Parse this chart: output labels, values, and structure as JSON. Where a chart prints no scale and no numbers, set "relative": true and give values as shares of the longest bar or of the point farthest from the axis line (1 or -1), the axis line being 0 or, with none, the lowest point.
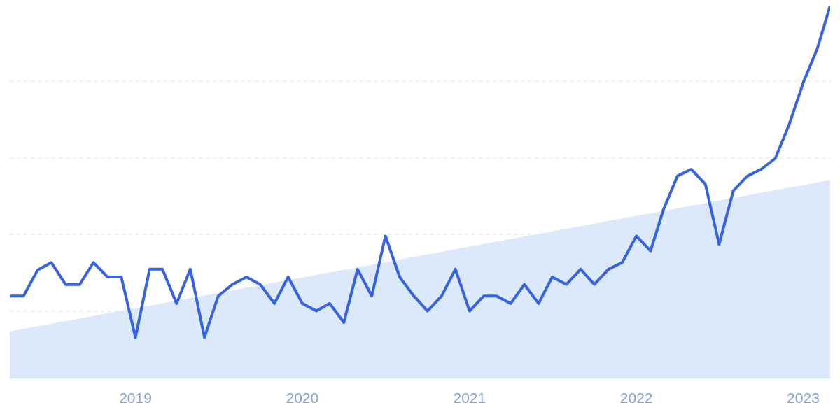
{
  "chart_data": {
    "type": "line",
    "relative": true,
    "grid": "y",
    "x": [
      "2018-04",
      "2018-05",
      "2018-06",
      "2018-07",
      "2018-08",
      "2018-09",
      "2018-10",
      "2018-11",
      "2018-12",
      "2019-01",
      "2019-02",
      "2019-03",
      "2019-04",
      "2019-05",
      "2019-06",
      "2019-07",
      "2019-08",
      "2019-09",
      "2019-10",
      "2019-11",
      "2019-12",
      "2020-01",
      "2020-02",
      "2020-03",
      "2020-04",
      "2020-05",
      "2020-06",
      "2020-07",
      "2020-08",
      "2020-09",
      "2020-10",
      "2020-11",
      "2020-12",
      "2021-01",
      "2021-02",
      "2021-03",
      "2021-04",
      "2021-05",
      "2021-06",
      "2021-07",
      "2021-08",
      "2021-09",
      "2021-10",
      "2021-11",
      "2021-12",
      "2022-01",
      "2022-02",
      "2022-03",
      "2022-04",
      "2022-05",
      "2022-06",
      "2022-07",
      "2022-08",
      "2022-09",
      "2022-10",
      "2022-11",
      "2022-12",
      "2023-01",
      "2023-02",
      "2023-03"
    ],
    "xlim": [
      "2018-04",
      "2023-03"
    ],
    "xticks": [
      {
        "value": "2019-01",
        "label": "2019"
      },
      {
        "value": "2020-01",
        "label": "2020"
      },
      {
        "value": "2021-01",
        "label": "2021"
      },
      {
        "value": "2022-01",
        "label": "2022"
      },
      {
        "value": "2023-01",
        "label": "2023"
      }
    ],
    "series": [
      {
        "color": "#3563e3",
        "values": [
          0.221,
          0.221,
          0.291,
          0.311,
          0.252,
          0.252,
          0.311,
          0.272,
          0.272,
          0.11,
          0.293,
          0.293,
          0.201,
          0.293,
          0.11,
          0.221,
          0.252,
          0.272,
          0.252,
          0.201,
          0.272,
          0.201,
          0.181,
          0.201,
          0.15,
          0.293,
          0.221,
          0.382,
          0.272,
          0.221,
          0.181,
          0.221,
          0.293,
          0.181,
          0.221,
          0.221,
          0.201,
          0.252,
          0.201,
          0.272,
          0.252,
          0.293,
          0.252,
          0.293,
          0.311,
          0.382,
          0.342,
          0.452,
          0.543,
          0.561,
          0.521,
          0.36,
          0.503,
          0.543,
          0.561,
          0.59,
          0.68,
          0.793,
          0.885,
          1
        ]
      },
      {
        "type": "area",
        "color": "#dce9fb",
        "x": [
          "2018-04",
          "2023-03"
        ],
        "values": [
          0.126,
          0.532
        ]
      }
    ]
  }
}
